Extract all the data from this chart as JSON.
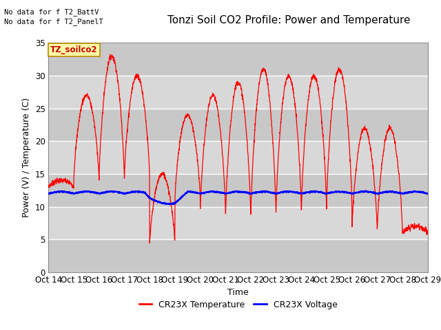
{
  "title": "Tonzi Soil CO2 Profile: Power and Temperature",
  "xlabel": "Time",
  "ylabel": "Power (V) / Temperature (C)",
  "ylim": [
    0,
    35
  ],
  "yticks": [
    0,
    5,
    10,
    15,
    20,
    25,
    30,
    35
  ],
  "x_labels": [
    "Oct 14",
    "Oct 15",
    "Oct 16",
    "Oct 17",
    "Oct 18",
    "Oct 19",
    "Oct 20",
    "Oct 21",
    "Oct 22",
    "Oct 23",
    "Oct 24",
    "Oct 25",
    "Oct 26",
    "Oct 27",
    "Oct 28",
    "Oct 29"
  ],
  "no_data_text1": "No data for f T2_BattV",
  "no_data_text2": "No data for f T2_PanelT",
  "legend_label_entry": "TZ_soilco2",
  "legend_line1": "CR23X Temperature",
  "legend_line2": "CR23X Voltage",
  "temp_color": "#ff0000",
  "volt_color": "#0000ff",
  "bg_color": "#ffffff",
  "plot_bg_color": "#d8d8d8",
  "grid_color": "#ffffff",
  "title_fontsize": 11,
  "axis_fontsize": 9,
  "tick_fontsize": 8.5
}
